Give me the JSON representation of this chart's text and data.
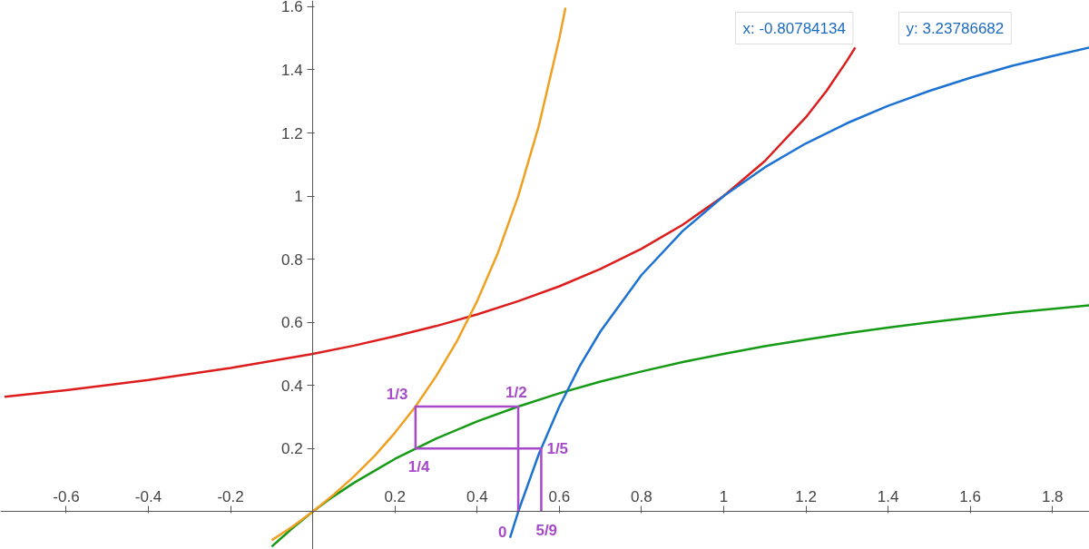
{
  "chart_data": {
    "type": "line",
    "xlim": [
      -0.76,
      1.89
    ],
    "ylim": [
      -0.12,
      1.62
    ],
    "xticks": [
      -0.6,
      -0.4,
      -0.2,
      0.2,
      0.4,
      0.6,
      0.8,
      1,
      1.2,
      1.4,
      1.6,
      1.8
    ],
    "yticks": [
      0.2,
      0.4,
      0.6,
      0.8,
      1,
      1.2,
      1.4,
      1.6
    ],
    "series": [
      {
        "color": "#dd1c1c",
        "x": [
          -0.75,
          -0.6,
          -0.4,
          -0.2,
          0,
          0.1,
          0.2,
          0.3,
          0.4,
          0.5,
          0.6,
          0.7,
          0.8,
          0.9,
          1.0,
          1.1,
          1.2,
          1.25,
          1.3,
          1.32
        ],
        "values": [
          0.364,
          0.385,
          0.417,
          0.455,
          0.5,
          0.526,
          0.556,
          0.588,
          0.625,
          0.667,
          0.714,
          0.769,
          0.833,
          0.909,
          1,
          1.111,
          1.25,
          1.333,
          1.429,
          1.471
        ]
      },
      {
        "color": "#159a15",
        "x": [
          -0.1,
          -0.05,
          0,
          0.05,
          0.1,
          0.2,
          0.3,
          0.4,
          0.5,
          0.6,
          0.7,
          0.8,
          0.9,
          1,
          1.1,
          1.2,
          1.3,
          1.4,
          1.5,
          1.6,
          1.7,
          1.89
        ],
        "values": [
          -0.111,
          -0.053,
          0,
          0.048,
          0.091,
          0.167,
          0.231,
          0.286,
          0.333,
          0.375,
          0.412,
          0.444,
          0.474,
          0.5,
          0.524,
          0.545,
          0.565,
          0.583,
          0.6,
          0.615,
          0.63,
          0.654
        ]
      },
      {
        "color": "#f0a020",
        "x": [
          -0.1,
          -0.05,
          0,
          0.05,
          0.1,
          0.15,
          0.2,
          0.25,
          0.3,
          0.35,
          0.4,
          0.45,
          0.5,
          0.55,
          0.6,
          0.615
        ],
        "values": [
          -0.091,
          -0.048,
          0,
          0.053,
          0.111,
          0.176,
          0.25,
          0.333,
          0.429,
          0.538,
          0.667,
          0.818,
          1,
          1.222,
          1.5,
          1.597
        ]
      },
      {
        "color": "#1b72d2",
        "x": [
          0.48,
          0.5,
          0.55,
          0.6,
          0.65,
          0.7,
          0.8,
          0.9,
          1,
          1.1,
          1.2,
          1.3,
          1.4,
          1.5,
          1.6,
          1.7,
          1.8,
          1.89
        ],
        "values": [
          -0.083,
          0,
          0.182,
          0.333,
          0.462,
          0.571,
          0.75,
          0.889,
          1,
          1.091,
          1.167,
          1.231,
          1.286,
          1.333,
          1.375,
          1.412,
          1.444,
          1.471
        ]
      },
      {
        "color": "#a64ac9",
        "x": [
          0.5,
          0.5,
          0.25,
          0.25,
          0.556,
          0.556
        ],
        "values": [
          0,
          0.333,
          0.333,
          0.2,
          0.2,
          0
        ]
      }
    ],
    "annotations": [
      {
        "text": "1/3",
        "x": 0.25,
        "y": 0.333
      },
      {
        "text": "1/2",
        "x": 0.5,
        "y": 0.333
      },
      {
        "text": "1/4",
        "x": 0.25,
        "y": 0.2
      },
      {
        "text": "1/5",
        "x": 0.556,
        "y": 0.2
      },
      {
        "text": "0",
        "x": 0.5,
        "y": 0
      },
      {
        "text": "5/9",
        "x": 0.556,
        "y": 0
      },
      "x: -0.80784134",
      "y: 3.23786682"
    ]
  }
}
